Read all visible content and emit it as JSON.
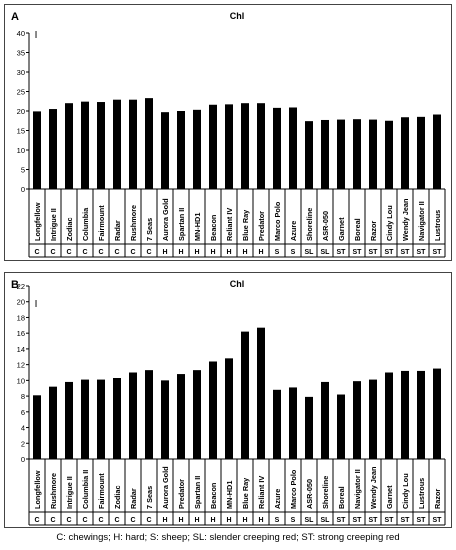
{
  "chart_data": [
    {
      "type": "bar",
      "panel_letter": "A",
      "title": "Chl",
      "ylim": [
        0,
        40
      ],
      "yticks": [
        0,
        5,
        10,
        15,
        20,
        25,
        30,
        35,
        40
      ],
      "error_bar_marker": "I",
      "grid": false,
      "categories": [
        "Longfellow",
        "Intrigue II",
        "Zodiac",
        "Columbia",
        "Fairmount",
        "Radar",
        "Rushmore",
        "7 Seas",
        "Aurora Gold",
        "Spartan II",
        "MN-HD1",
        "Beacon",
        "Reliant IV",
        "Blue Ray",
        "Predator",
        "Marco Polo",
        "Azure",
        "Shoreline",
        "ASR-050",
        "Garnet",
        "Boreal",
        "Razor",
        "Cindy Lou",
        "Wendy Jean",
        "Navigator II",
        "Lustrous"
      ],
      "groups": [
        "C",
        "C",
        "C",
        "C",
        "C",
        "C",
        "C",
        "C",
        "H",
        "H",
        "H",
        "H",
        "H",
        "H",
        "H",
        "S",
        "S",
        "SL",
        "SL",
        "ST",
        "ST",
        "ST",
        "ST",
        "ST",
        "ST",
        "ST"
      ],
      "values": [
        19.9,
        20.5,
        22.0,
        22.4,
        22.3,
        22.9,
        22.9,
        23.3,
        19.7,
        20.0,
        20.3,
        21.6,
        21.7,
        22.0,
        22.0,
        20.8,
        20.9,
        17.4,
        17.7,
        17.8,
        17.9,
        17.8,
        17.5,
        18.4,
        18.5,
        19.1
      ]
    },
    {
      "type": "bar",
      "panel_letter": "B",
      "title": "Chl",
      "ylim": [
        0,
        22
      ],
      "yticks": [
        0,
        2,
        4,
        6,
        8,
        10,
        12,
        14,
        16,
        18,
        20,
        22
      ],
      "error_bar_marker": "I",
      "grid": false,
      "categories": [
        "Longfellow",
        "Rushmore",
        "Intrigue II",
        "Columbia II",
        "Fairmount",
        "Zodiac",
        "Radar",
        "7 Seas",
        "Aurora Gold",
        "Predator",
        "Spartan II",
        "Beacon",
        "MN-HD1",
        "Blue Ray",
        "Reliant IV",
        "Azure",
        "Marco Polo",
        "ASR-050",
        "Shoreline",
        "Boreal",
        "Navigator II",
        "Wendy Jean",
        "Garnet",
        "Cindy Lou",
        "Lustrous",
        "Razor"
      ],
      "groups": [
        "C",
        "C",
        "C",
        "C",
        "C",
        "C",
        "C",
        "C",
        "H",
        "H",
        "H",
        "H",
        "H",
        "H",
        "H",
        "S",
        "S",
        "SL",
        "SL",
        "ST",
        "ST",
        "ST",
        "ST",
        "ST",
        "ST",
        "ST"
      ],
      "values": [
        8.1,
        9.2,
        9.8,
        10.1,
        10.1,
        10.3,
        11.0,
        11.3,
        10.0,
        10.8,
        11.3,
        12.4,
        12.8,
        16.2,
        16.7,
        8.8,
        9.1,
        7.9,
        9.8,
        8.2,
        9.9,
        10.1,
        11.0,
        11.2,
        11.2,
        11.5
      ]
    }
  ],
  "caption": "C: chewings; H: hard; S: sheep; SL: slender creeping red; ST: strong creeping red"
}
